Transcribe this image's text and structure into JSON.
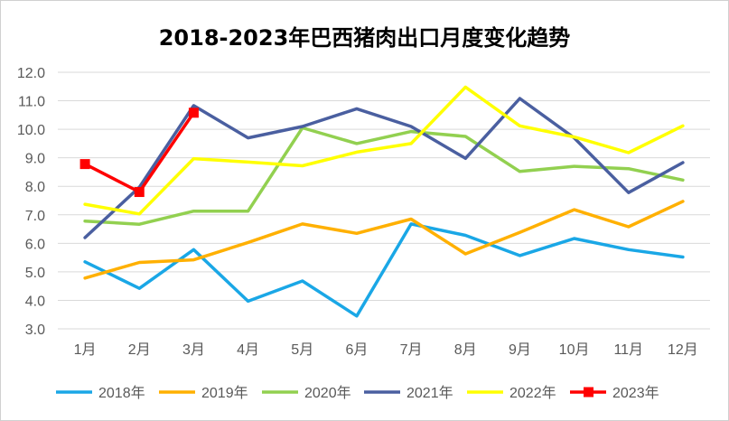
{
  "chart_data": {
    "type": "line",
    "title": "2018-2023年巴西猪肉出口月度变化趋势",
    "categories": [
      "1月",
      "2月",
      "3月",
      "4月",
      "5月",
      "6月",
      "7月",
      "8月",
      "9月",
      "10月",
      "11月",
      "12月"
    ],
    "ylim": [
      3.0,
      12.0
    ],
    "yticks": [
      "3.0",
      "4.0",
      "5.0",
      "6.0",
      "7.0",
      "8.0",
      "9.0",
      "10.0",
      "11.0",
      "12.0"
    ],
    "grid": "horizontal",
    "legend_position": "bottom",
    "series": [
      {
        "name": "2018年",
        "color": "#1AA7E6",
        "marker": "none",
        "values": [
          5.35,
          4.42,
          5.78,
          3.97,
          4.68,
          3.45,
          6.68,
          6.28,
          5.57,
          6.17,
          5.78,
          5.52
        ]
      },
      {
        "name": "2019年",
        "color": "#FFB000",
        "marker": "none",
        "values": [
          4.78,
          5.33,
          5.42,
          6.03,
          6.68,
          6.35,
          6.85,
          5.63,
          6.38,
          7.18,
          6.58,
          7.47
        ]
      },
      {
        "name": "2020年",
        "color": "#92D050",
        "marker": "none",
        "values": [
          6.78,
          6.67,
          7.13,
          7.13,
          10.05,
          9.5,
          9.92,
          9.75,
          8.52,
          8.7,
          8.62,
          8.22
        ]
      },
      {
        "name": "2021年",
        "color": "#4A5FA0",
        "marker": "none",
        "values": [
          6.2,
          7.97,
          10.83,
          9.7,
          10.1,
          10.72,
          10.1,
          8.98,
          11.08,
          9.7,
          7.78,
          8.83
        ]
      },
      {
        "name": "2022年",
        "color": "#FFFF00",
        "marker": "none",
        "values": [
          7.37,
          7.03,
          8.97,
          8.85,
          8.72,
          9.2,
          9.5,
          11.48,
          10.12,
          9.73,
          9.18,
          10.12
        ]
      },
      {
        "name": "2023年",
        "color": "#FF0000",
        "marker": "square",
        "values": [
          8.78,
          7.8,
          10.58,
          null,
          null,
          null,
          null,
          null,
          null,
          null,
          null,
          null
        ]
      }
    ]
  }
}
